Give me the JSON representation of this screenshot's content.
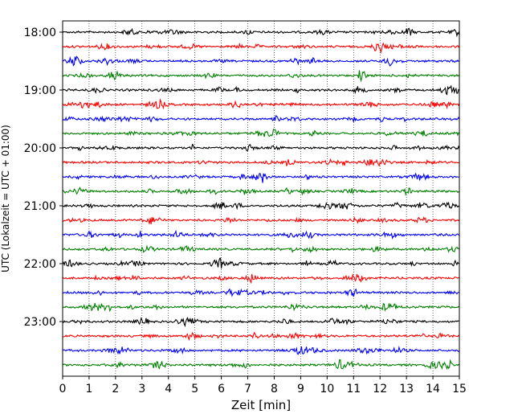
{
  "chart_data": {
    "type": "line",
    "title": "",
    "xlabel": "Zeit  [min]",
    "ylabel": "UTC (Lokalzeit = UTC + 01:00)",
    "xlim": [
      0,
      15
    ],
    "x_ticks": [
      "0",
      "1",
      "2",
      "3",
      "4",
      "5",
      "6",
      "7",
      "8",
      "9",
      "10",
      "11",
      "12",
      "13",
      "14",
      "15"
    ],
    "y_ticks": [
      "18:00",
      "19:00",
      "20:00",
      "21:00",
      "22:00",
      "23:00"
    ],
    "grid": "vertical dotted",
    "trace_colors": [
      "#000000",
      "#ff0000",
      "#0000ff",
      "#008000"
    ],
    "rows": [
      {
        "start": "18:00",
        "color": "#000000"
      },
      {
        "start": "18:15",
        "color": "#ff0000"
      },
      {
        "start": "18:30",
        "color": "#0000ff"
      },
      {
        "start": "18:45",
        "color": "#008000"
      },
      {
        "start": "19:00",
        "color": "#000000"
      },
      {
        "start": "19:15",
        "color": "#ff0000"
      },
      {
        "start": "19:30",
        "color": "#0000ff"
      },
      {
        "start": "19:45",
        "color": "#008000"
      },
      {
        "start": "20:00",
        "color": "#000000"
      },
      {
        "start": "20:15",
        "color": "#ff0000"
      },
      {
        "start": "20:30",
        "color": "#0000ff"
      },
      {
        "start": "20:45",
        "color": "#008000"
      },
      {
        "start": "21:00",
        "color": "#000000"
      },
      {
        "start": "21:15",
        "color": "#ff0000"
      },
      {
        "start": "21:30",
        "color": "#0000ff"
      },
      {
        "start": "21:45",
        "color": "#008000"
      },
      {
        "start": "22:00",
        "color": "#000000"
      },
      {
        "start": "22:15",
        "color": "#ff0000"
      },
      {
        "start": "22:30",
        "color": "#0000ff"
      },
      {
        "start": "22:45",
        "color": "#008000"
      },
      {
        "start": "23:00",
        "color": "#000000"
      },
      {
        "start": "23:15",
        "color": "#ff0000"
      },
      {
        "start": "23:30",
        "color": "#0000ff"
      },
      {
        "start": "23:45",
        "color": "#008000"
      }
    ]
  }
}
